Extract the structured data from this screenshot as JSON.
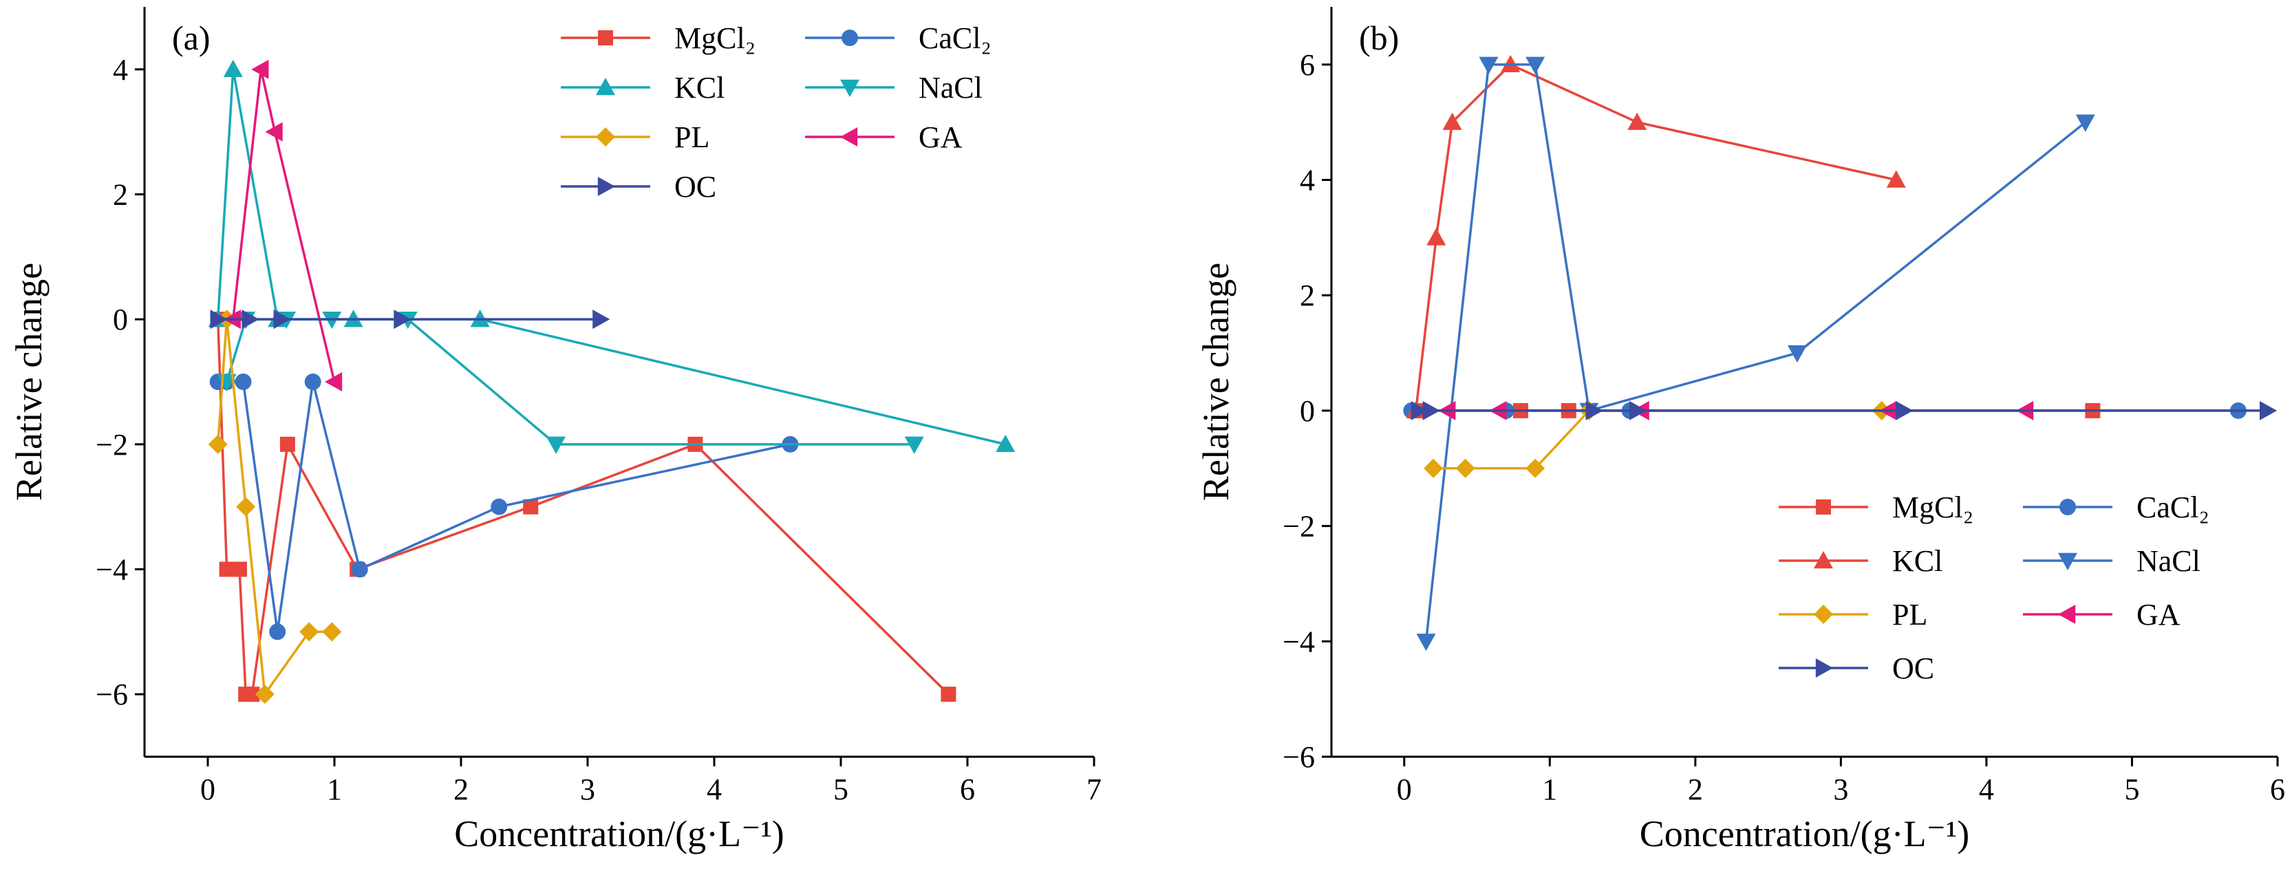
{
  "figure": {
    "xlabel": "Concentration/(g·L⁻¹)",
    "ylabel": "Relative change"
  },
  "chart_data": [
    {
      "type": "line",
      "panel_label": "(a)",
      "xlabel": "Concentration/(g·L⁻¹)",
      "ylabel": "Relative change",
      "xlim": [
        -0.5,
        7
      ],
      "ylim": [
        -7,
        5
      ],
      "xticks": [
        "0",
        "1",
        "2",
        "3",
        "4",
        "5",
        "6",
        "7"
      ],
      "yticks": [
        "−6",
        "−4",
        "−2",
        "0",
        "2",
        "4"
      ],
      "grid": false,
      "legend_position": "top-right",
      "series": [
        {
          "name": "MgCl₂",
          "color": "#e8453c",
          "marker": "square",
          "x": [
            0.08,
            0.15,
            0.2,
            0.25,
            0.3,
            0.35,
            0.63,
            1.18,
            2.55,
            3.85,
            5.85
          ],
          "y": [
            0,
            -4,
            -4,
            -4,
            -6,
            -6,
            -2,
            -4,
            -3,
            -2,
            -6
          ]
        },
        {
          "name": "CaCl₂",
          "color": "#3a73c4",
          "marker": "circle",
          "x": [
            0.08,
            0.15,
            0.28,
            0.55,
            0.83,
            1.2,
            2.3,
            4.6
          ],
          "y": [
            -1,
            -1,
            -1,
            -5,
            -1,
            -4,
            -3,
            -2
          ]
        },
        {
          "name": "KCl",
          "color": "#17a9b7",
          "marker": "triangle-up",
          "x": [
            0.08,
            0.2,
            0.55,
            1.15,
            2.15,
            6.3
          ],
          "y": [
            0,
            4,
            0,
            0,
            0,
            -2
          ]
        },
        {
          "name": "NaCl",
          "color": "#17a9b7",
          "marker": "triangle-down",
          "x": [
            0.15,
            0.3,
            0.62,
            0.98,
            1.58,
            2.75,
            5.58
          ],
          "y": [
            -1,
            0,
            0,
            0,
            0,
            -2,
            -2
          ]
        },
        {
          "name": "PL",
          "color": "#e3a40d",
          "marker": "diamond",
          "x": [
            0.08,
            0.15,
            0.3,
            0.45,
            0.8,
            0.98
          ],
          "y": [
            -2,
            0,
            -3,
            -6,
            -5,
            -5
          ]
        },
        {
          "name": "GA",
          "color": "#e5197a",
          "marker": "triangle-left",
          "x": [
            0.2,
            0.42,
            0.53,
            1.0
          ],
          "y": [
            0,
            4,
            3,
            -1
          ]
        },
        {
          "name": "OC",
          "color": "#3b4aa0",
          "marker": "triangle-right",
          "x": [
            0.08,
            0.33,
            0.58,
            1.53,
            3.1
          ],
          "y": [
            0,
            0,
            0,
            0,
            0
          ]
        }
      ]
    },
    {
      "type": "line",
      "panel_label": "(b)",
      "xlabel": "Concentration/(g·L⁻¹)",
      "ylabel": "Relative change",
      "xlim": [
        -0.5,
        6
      ],
      "ylim": [
        -6,
        7
      ],
      "xticks": [
        "0",
        "1",
        "2",
        "3",
        "4",
        "5",
        "6"
      ],
      "yticks": [
        "−6",
        "−4",
        "−2",
        "0",
        "2",
        "4",
        "6"
      ],
      "grid": false,
      "legend_position": "bottom-right",
      "series": [
        {
          "name": "MgCl₂",
          "color": "#e8453c",
          "marker": "square",
          "x": [
            0.08,
            0.8,
            1.13,
            4.73
          ],
          "y": [
            0,
            0,
            0,
            0
          ]
        },
        {
          "name": "CaCl₂",
          "color": "#3a73c4",
          "marker": "circle",
          "x": [
            0.05,
            0.7,
            1.55,
            5.73
          ],
          "y": [
            0,
            0,
            0,
            0
          ]
        },
        {
          "name": "KCl",
          "color": "#e8453c",
          "marker": "triangle-up",
          "x": [
            0.08,
            0.22,
            0.33,
            0.73,
            1.6,
            3.38
          ],
          "y": [
            0,
            3,
            5,
            6,
            5,
            4
          ]
        },
        {
          "name": "NaCl",
          "color": "#3a73c4",
          "marker": "triangle-down",
          "x": [
            0.15,
            0.58,
            0.9,
            1.27,
            2.7,
            4.68
          ],
          "y": [
            -4,
            6,
            6,
            0,
            1,
            5
          ]
        },
        {
          "name": "PL",
          "color": "#e3a40d",
          "marker": "diamond",
          "x": [
            0.2,
            0.42,
            0.9,
            1.27,
            3.28
          ],
          "y": [
            -1,
            -1,
            -1,
            0,
            0
          ]
        },
        {
          "name": "GA",
          "color": "#e5197a",
          "marker": "triangle-left",
          "x": [
            0.3,
            0.65,
            1.63,
            3.33,
            4.27
          ],
          "y": [
            0,
            0,
            0,
            0,
            0
          ]
        },
        {
          "name": "OC",
          "color": "#3b4aa0",
          "marker": "triangle-right",
          "x": [
            0.1,
            0.18,
            1.3,
            1.6,
            3.43,
            5.93
          ],
          "y": [
            0,
            0,
            0,
            0,
            0,
            0
          ]
        }
      ]
    }
  ]
}
